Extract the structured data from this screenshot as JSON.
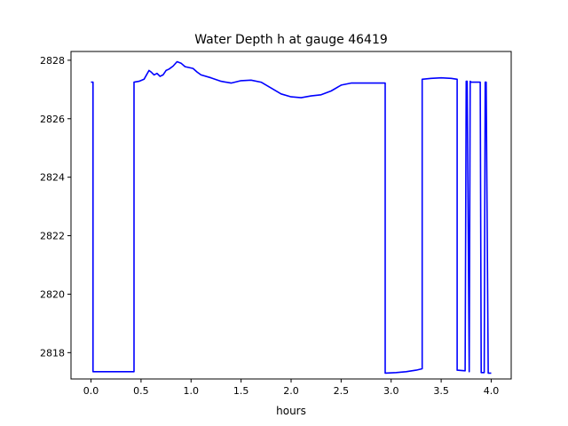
{
  "chart_data": {
    "type": "line",
    "title": "Water Depth h at gauge 46419",
    "xlabel": "hours",
    "ylabel": "",
    "xlim": [
      -0.2,
      4.2
    ],
    "ylim": [
      2817.1,
      2828.3
    ],
    "xticks": [
      0.0,
      0.5,
      1.0,
      1.5,
      2.0,
      2.5,
      3.0,
      3.5,
      4.0
    ],
    "xtick_labels": [
      "0.0",
      "0.5",
      "1.0",
      "1.5",
      "2.0",
      "2.5",
      "3.0",
      "3.5",
      "4.0"
    ],
    "yticks": [
      2818,
      2820,
      2822,
      2824,
      2826,
      2828
    ],
    "ytick_labels": [
      "2818",
      "2820",
      "2822",
      "2824",
      "2826",
      "2828"
    ],
    "grid": false,
    "legend": "none",
    "series": [
      {
        "color": "#0000ff",
        "x": [
          0.0,
          0.02,
          0.02,
          0.1,
          0.2,
          0.3,
          0.43,
          0.43,
          0.48,
          0.53,
          0.58,
          0.6,
          0.63,
          0.66,
          0.69,
          0.72,
          0.75,
          0.78,
          0.82,
          0.86,
          0.9,
          0.94,
          0.98,
          1.02,
          1.06,
          1.1,
          1.2,
          1.3,
          1.4,
          1.5,
          1.6,
          1.7,
          1.8,
          1.9,
          2.0,
          2.1,
          2.2,
          2.3,
          2.4,
          2.5,
          2.6,
          2.7,
          2.8,
          2.94,
          2.94,
          3.05,
          3.15,
          3.25,
          3.31,
          3.31,
          3.4,
          3.5,
          3.6,
          3.66,
          3.66,
          3.74,
          3.75,
          3.76,
          3.78,
          3.79,
          3.8,
          3.89,
          3.9,
          3.93,
          3.94,
          3.95,
          3.97,
          4.0
        ],
        "y": [
          2827.25,
          2827.25,
          2817.35,
          2817.35,
          2817.35,
          2817.35,
          2817.35,
          2827.25,
          2827.28,
          2827.35,
          2827.65,
          2827.6,
          2827.5,
          2827.55,
          2827.45,
          2827.5,
          2827.65,
          2827.7,
          2827.8,
          2827.95,
          2827.9,
          2827.78,
          2827.75,
          2827.72,
          2827.6,
          2827.5,
          2827.4,
          2827.28,
          2827.22,
          2827.3,
          2827.32,
          2827.25,
          2827.05,
          2826.85,
          2826.75,
          2826.72,
          2826.78,
          2826.82,
          2826.95,
          2827.15,
          2827.22,
          2827.22,
          2827.22,
          2827.22,
          2817.3,
          2817.32,
          2817.35,
          2817.4,
          2817.45,
          2827.35,
          2827.38,
          2827.4,
          2827.38,
          2827.35,
          2817.4,
          2817.38,
          2827.28,
          2827.28,
          2817.35,
          2827.28,
          2827.25,
          2827.25,
          2817.32,
          2817.32,
          2827.25,
          2827.25,
          2817.3,
          2817.3
        ]
      }
    ]
  }
}
